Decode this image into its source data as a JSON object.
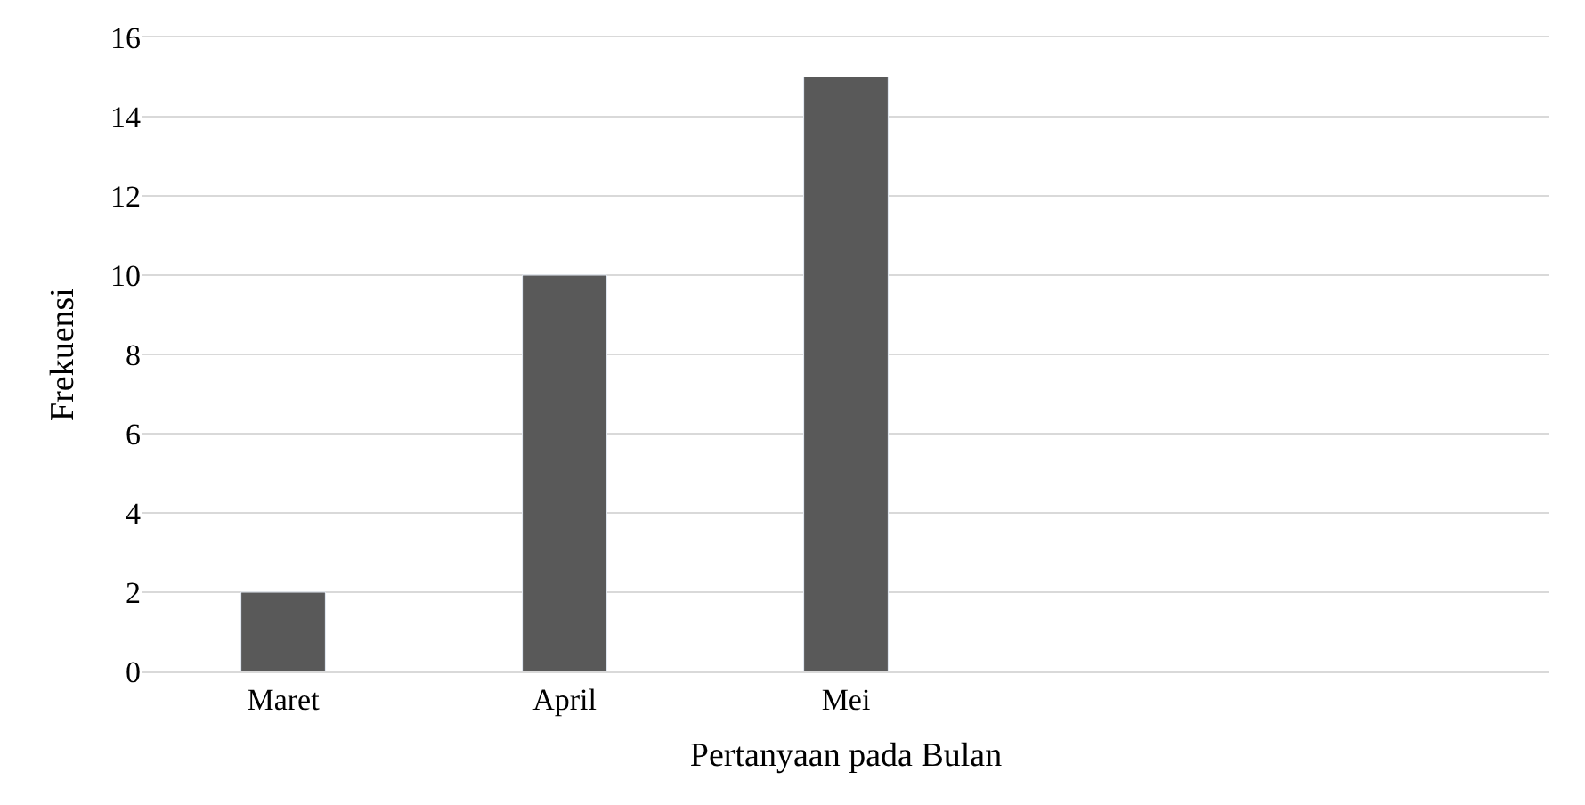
{
  "chart_data": {
    "type": "bar",
    "xlabel": "Pertanyaan pada Bulan",
    "ylabel": "Frekuensi",
    "categories": [
      "Maret",
      "April",
      "Mei",
      null,
      null
    ],
    "values": [
      2,
      10,
      15,
      null,
      null
    ],
    "color": "#595959",
    "ylim": [
      0,
      16
    ],
    "yticks": [
      0,
      2,
      4,
      6,
      8,
      10,
      12,
      14,
      16
    ],
    "grid": "y"
  }
}
